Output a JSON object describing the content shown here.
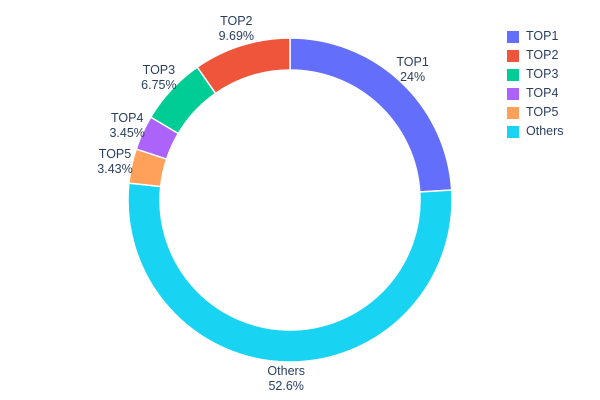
{
  "chart_data": {
    "type": "pie",
    "hole": 0.8,
    "title": "",
    "slices": [
      {
        "name": "TOP1",
        "value": 24,
        "pct_label": "24%",
        "color": "#636EFA"
      },
      {
        "name": "TOP2",
        "value": 9.69,
        "pct_label": "9.69%",
        "color": "#EF553B"
      },
      {
        "name": "TOP3",
        "value": 6.75,
        "pct_label": "6.75%",
        "color": "#00CC96"
      },
      {
        "name": "TOP4",
        "value": 3.45,
        "pct_label": "3.45%",
        "color": "#AB63FA"
      },
      {
        "name": "TOP5",
        "value": 3.43,
        "pct_label": "3.43%",
        "color": "#FFA15A"
      },
      {
        "name": "Others",
        "value": 52.6,
        "pct_label": "52.6%",
        "color": "#19D3F3"
      }
    ],
    "clockwise_draw_order": [
      "TOP1",
      "Others",
      "TOP5",
      "TOP4",
      "TOP3",
      "TOP2"
    ],
    "rotation_start": "top",
    "labels_position": "outside",
    "legend": {
      "position": "right",
      "entries": [
        "TOP1",
        "TOP2",
        "TOP3",
        "TOP4",
        "TOP5",
        "Others"
      ]
    },
    "text_color": "#2a3f5f",
    "background_color": "#ffffff"
  }
}
